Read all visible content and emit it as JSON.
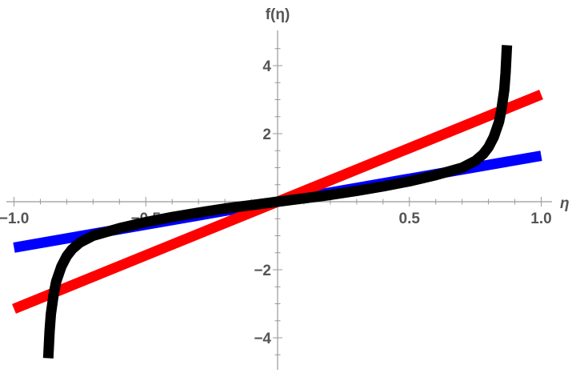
{
  "chart_data": {
    "type": "line",
    "title": "",
    "xlabel": "η",
    "ylabel": "f(η)",
    "xlim": [
      -1.0,
      1.0
    ],
    "ylim": [
      -4.9,
      4.9
    ],
    "grid": false,
    "x_ticks": [
      {
        "value": -1.0,
        "label": "−1.0"
      },
      {
        "value": -0.5,
        "label": "−0.5"
      },
      {
        "value": 0.5,
        "label": "0.5"
      },
      {
        "value": 1.0,
        "label": "1.0"
      }
    ],
    "y_ticks": [
      {
        "value": -4,
        "label": "−4"
      },
      {
        "value": -2,
        "label": "−2"
      },
      {
        "value": 2,
        "label": "2"
      },
      {
        "value": 4,
        "label": "4"
      }
    ],
    "series": [
      {
        "color": "#0000ff",
        "points": [
          [
            -1.0,
            -1.35
          ],
          [
            1.0,
            1.35
          ]
        ]
      },
      {
        "color": "#ff0000",
        "points": [
          [
            -1.0,
            -3.15
          ],
          [
            1.0,
            3.15
          ]
        ]
      },
      {
        "color": "#000000",
        "points": [
          [
            -0.87,
            -4.6
          ],
          [
            -0.865,
            -3.8
          ],
          [
            -0.86,
            -3.3
          ],
          [
            -0.85,
            -2.75
          ],
          [
            -0.84,
            -2.35
          ],
          [
            -0.82,
            -1.9
          ],
          [
            -0.8,
            -1.6
          ],
          [
            -0.78,
            -1.4
          ],
          [
            -0.75,
            -1.2
          ],
          [
            -0.7,
            -1.0
          ],
          [
            -0.6,
            -0.78
          ],
          [
            -0.5,
            -0.6
          ],
          [
            -0.4,
            -0.45
          ],
          [
            -0.3,
            -0.32
          ],
          [
            -0.2,
            -0.2
          ],
          [
            -0.1,
            -0.1
          ],
          [
            0.0,
            0.0
          ],
          [
            0.1,
            0.1
          ],
          [
            0.2,
            0.2
          ],
          [
            0.3,
            0.32
          ],
          [
            0.4,
            0.45
          ],
          [
            0.5,
            0.6
          ],
          [
            0.6,
            0.78
          ],
          [
            0.7,
            1.0
          ],
          [
            0.75,
            1.2
          ],
          [
            0.78,
            1.4
          ],
          [
            0.8,
            1.6
          ],
          [
            0.82,
            1.9
          ],
          [
            0.84,
            2.35
          ],
          [
            0.85,
            2.75
          ],
          [
            0.86,
            3.3
          ],
          [
            0.865,
            3.8
          ],
          [
            0.87,
            4.6
          ]
        ]
      }
    ]
  }
}
